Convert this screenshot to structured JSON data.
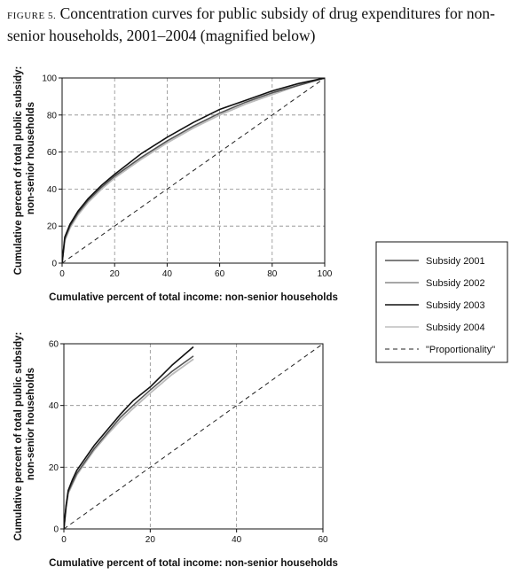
{
  "caption": {
    "label": "FIGURE 5.",
    "text": "Concentration curves for public subsidy of drug expenditures for non-senior households, 2001–2004 (magnified below)"
  },
  "colors": {
    "s2001": "#555555",
    "s2002": "#8a8a8a",
    "s2003": "#111111",
    "s2004": "#bdbdbd",
    "proportionality": "#222222",
    "grid": "#8c8c8c"
  },
  "chart_data": [
    {
      "type": "line",
      "xlabel": "Cumulative percent of total income: non-senior households",
      "ylabel_line1": "Cumulative percent of total public subsidy:",
      "ylabel_line2": "non-senior households",
      "xlim": [
        0,
        100
      ],
      "ylim": [
        0,
        100
      ],
      "xticks": [
        "0",
        "20",
        "40",
        "60",
        "80",
        "100"
      ],
      "yticks": [
        "0",
        "20",
        "40",
        "60",
        "80",
        "100"
      ],
      "grid": true,
      "series": [
        {
          "name": "Subsidy 2001",
          "x": [
            0,
            1,
            3,
            6,
            10,
            15,
            20,
            30,
            40,
            50,
            60,
            70,
            80,
            90,
            100
          ],
          "y": [
            0,
            13,
            20,
            27,
            34,
            41,
            47,
            57,
            66,
            74,
            81,
            87,
            92,
            96,
            100
          ]
        },
        {
          "name": "Subsidy 2002",
          "x": [
            0,
            1,
            3,
            6,
            10,
            15,
            20,
            30,
            40,
            50,
            60,
            70,
            80,
            90,
            100
          ],
          "y": [
            0,
            12,
            19,
            26,
            33,
            40,
            46,
            56,
            65,
            73,
            80,
            86,
            91,
            96,
            100
          ]
        },
        {
          "name": "Subsidy 2003",
          "x": [
            0,
            1,
            3,
            6,
            10,
            15,
            20,
            30,
            40,
            50,
            60,
            70,
            80,
            90,
            100
          ],
          "y": [
            0,
            14,
            21,
            28,
            35,
            42,
            48,
            59,
            68,
            76,
            83,
            88,
            93,
            97,
            100
          ]
        },
        {
          "name": "Subsidy 2004",
          "x": [
            0,
            1,
            3,
            6,
            10,
            15,
            20,
            30,
            40,
            50,
            60,
            70,
            80,
            90,
            100
          ],
          "y": [
            0,
            12,
            19,
            26,
            33,
            40,
            46,
            56,
            65,
            73,
            80,
            86,
            91,
            96,
            100
          ]
        },
        {
          "name": "\"Proportionality\"",
          "x": [
            0,
            100
          ],
          "y": [
            0,
            100
          ]
        }
      ]
    },
    {
      "type": "line",
      "xlabel": "Cumulative percent of total income: non-senior households",
      "ylabel_line1": "Cumulative percent of total public subsidy:",
      "ylabel_line2": "non-senior households",
      "xlim": [
        0,
        60
      ],
      "ylim": [
        0,
        60
      ],
      "xticks": [
        "0",
        "20",
        "40",
        "60"
      ],
      "yticks": [
        "0",
        "20",
        "40",
        "60"
      ],
      "grid": true,
      "series": [
        {
          "name": "Subsidy 2001",
          "x": [
            0,
            0.5,
            1,
            2,
            3,
            5,
            7,
            10,
            13,
            16,
            20,
            25,
            30
          ],
          "y": [
            0,
            7,
            12,
            15,
            18,
            22,
            26,
            31,
            36,
            40,
            45,
            51,
            56
          ]
        },
        {
          "name": "Subsidy 2002",
          "x": [
            0,
            0.5,
            1,
            2,
            3,
            5,
            7,
            10,
            13,
            16,
            20,
            25,
            30
          ],
          "y": [
            0,
            6.5,
            11.5,
            14.5,
            17.5,
            21.5,
            25.5,
            30.5,
            35,
            39,
            44,
            50,
            55
          ]
        },
        {
          "name": "Subsidy 2003",
          "x": [
            0,
            0.5,
            1,
            2,
            3,
            5,
            7,
            10,
            13,
            16,
            20,
            25,
            30
          ],
          "y": [
            0,
            7.5,
            12.5,
            16,
            19,
            23,
            27,
            32,
            37,
            41.5,
            46,
            53,
            59
          ]
        },
        {
          "name": "Subsidy 2004",
          "x": [
            0,
            0.5,
            1,
            2,
            3,
            5,
            7,
            10,
            13,
            16,
            20,
            25,
            30
          ],
          "y": [
            0,
            6.5,
            11.5,
            14.5,
            17.5,
            21.5,
            25.5,
            30.5,
            35,
            39,
            44,
            50,
            55
          ]
        },
        {
          "name": "\"Proportionality\"",
          "x": [
            0,
            60
          ],
          "y": [
            0,
            60
          ]
        }
      ]
    }
  ],
  "legend": {
    "placement": "right",
    "items": [
      "Subsidy 2001",
      "Subsidy 2002",
      "Subsidy 2003",
      "Subsidy 2004",
      "\"Proportionality\""
    ]
  }
}
